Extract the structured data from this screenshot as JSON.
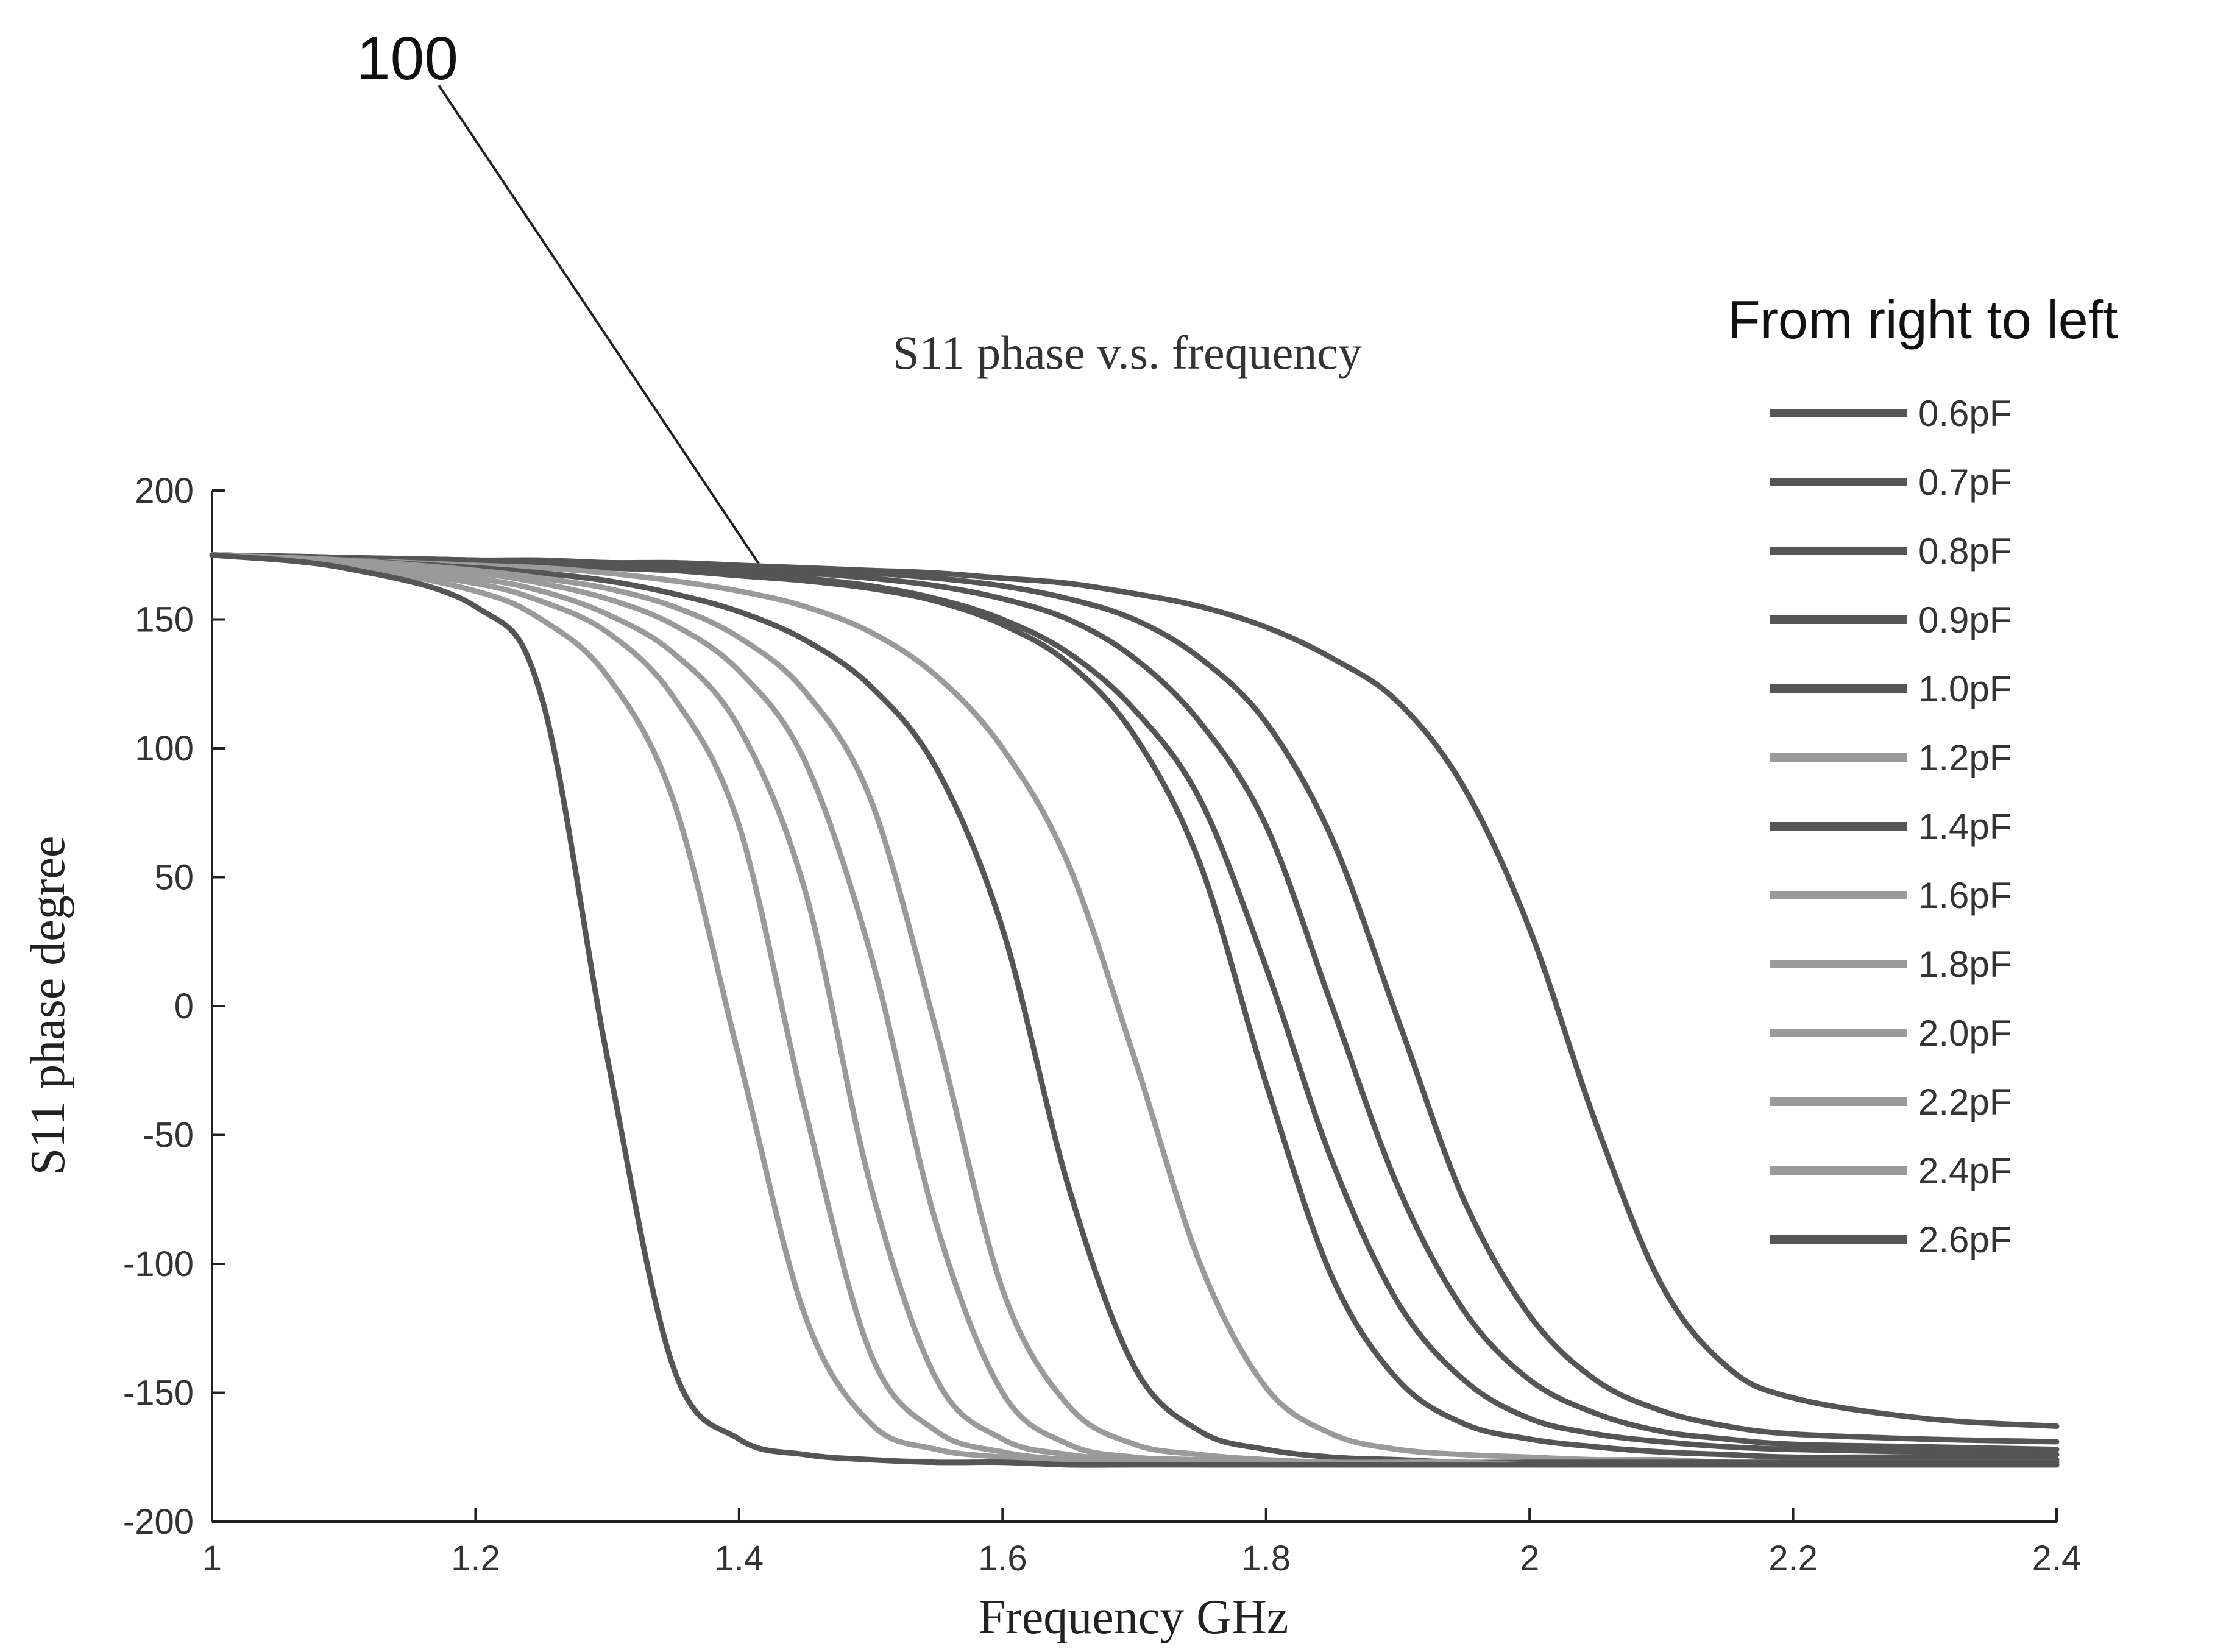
{
  "reference_numeral": "100",
  "legend": {
    "heading": "From right to left"
  },
  "colors": {
    "curve_dark": "#555555",
    "curve_light": "#9a9a9a",
    "axis": "#222222",
    "text": "#333333"
  },
  "chart_data": {
    "type": "line",
    "title": "S11 phase v.s. frequency",
    "xlabel": "Frequency GHz",
    "ylabel": "S11 phase degree",
    "xlim": [
      1,
      2.4
    ],
    "ylim": [
      -200,
      200
    ],
    "x_ticks": [
      1,
      1.2,
      1.4,
      1.6,
      1.8,
      2,
      2.2,
      2.4
    ],
    "x_tick_labels": [
      "1",
      "1.2",
      "1.4",
      "1.6",
      "1.8",
      "2",
      "2.2",
      "2.4"
    ],
    "y_ticks": [
      200,
      150,
      100,
      50,
      0,
      -50,
      -100,
      -150,
      -200
    ],
    "y_tick_labels": [
      "200",
      "150",
      "100",
      "50",
      "0",
      "-50",
      "-100",
      "-150",
      "-200"
    ],
    "grid": false,
    "legend_position": "right",
    "x": [
      1.0,
      1.1,
      1.2,
      1.25,
      1.3,
      1.35,
      1.4,
      1.45,
      1.5,
      1.55,
      1.6,
      1.65,
      1.7,
      1.75,
      1.8,
      1.85,
      1.9,
      1.95,
      2.0,
      2.05,
      2.1,
      2.15,
      2.2,
      2.3,
      2.4
    ],
    "series": [
      {
        "name": "0.6pF",
        "style": "dark",
        "values": [
          175,
          174,
          173,
          173,
          172,
          172,
          171,
          170,
          169,
          168,
          166,
          164,
          160,
          155,
          147,
          135,
          118,
          85,
          30,
          -45,
          -108,
          -140,
          -152,
          -160,
          -163
        ]
      },
      {
        "name": "0.7pF",
        "style": "dark",
        "values": [
          175,
          174,
          173,
          172,
          172,
          171,
          170,
          169,
          168,
          166,
          163,
          158,
          150,
          135,
          110,
          65,
          -5,
          -75,
          -120,
          -145,
          -157,
          -163,
          -166,
          -168,
          -169
        ]
      },
      {
        "name": "0.8pF",
        "style": "dark",
        "values": [
          175,
          174,
          173,
          172,
          171,
          170,
          169,
          168,
          166,
          163,
          158,
          150,
          135,
          110,
          70,
          0,
          -70,
          -118,
          -145,
          -158,
          -165,
          -168,
          -170,
          -171,
          -172
        ]
      },
      {
        "name": "0.9pF",
        "style": "dark",
        "values": [
          175,
          174,
          172,
          171,
          170,
          169,
          168,
          166,
          163,
          158,
          150,
          137,
          115,
          80,
          15,
          -60,
          -115,
          -145,
          -160,
          -166,
          -169,
          -171,
          -172,
          -173,
          -174
        ]
      },
      {
        "name": "1.0pF",
        "style": "dark",
        "values": [
          175,
          174,
          172,
          171,
          170,
          169,
          167,
          165,
          162,
          157,
          148,
          133,
          105,
          55,
          -30,
          -105,
          -145,
          -162,
          -168,
          -171,
          -173,
          -174,
          -175,
          -175,
          -176
        ]
      },
      {
        "name": "1.2pF",
        "style": "light",
        "values": [
          175,
          173,
          171,
          170,
          168,
          165,
          161,
          155,
          145,
          128,
          100,
          55,
          -20,
          -100,
          -148,
          -166,
          -172,
          -174,
          -175,
          -176,
          -176,
          -177,
          -177,
          -177,
          -177
        ]
      },
      {
        "name": "1.4pF",
        "style": "dark",
        "values": [
          175,
          173,
          170,
          168,
          165,
          160,
          153,
          142,
          124,
          92,
          30,
          -70,
          -140,
          -165,
          -172,
          -175,
          -176,
          -177,
          -177,
          -177,
          -177,
          -177,
          -177,
          -177,
          -177
        ]
      },
      {
        "name": "1.6pF",
        "style": "light",
        "values": [
          175,
          173,
          169,
          166,
          162,
          155,
          143,
          122,
          80,
          -10,
          -110,
          -155,
          -170,
          -174,
          -176,
          -177,
          -177,
          -177,
          -178,
          -178,
          -178,
          -178,
          -178,
          -178,
          -178
        ]
      },
      {
        "name": "1.8pF",
        "style": "light",
        "values": [
          175,
          172,
          168,
          164,
          158,
          148,
          130,
          95,
          20,
          -85,
          -150,
          -170,
          -175,
          -176,
          -177,
          -177,
          -178,
          -178,
          -178,
          -178,
          -178,
          -178,
          -178,
          -178,
          -178
        ]
      },
      {
        "name": "2.0pF",
        "style": "light",
        "values": [
          175,
          172,
          166,
          161,
          152,
          137,
          108,
          45,
          -70,
          -145,
          -168,
          -174,
          -176,
          -177,
          -177,
          -178,
          -178,
          -178,
          -178,
          -178,
          -178,
          -178,
          -178,
          -178,
          -178
        ]
      },
      {
        "name": "2.2pF",
        "style": "light",
        "values": [
          175,
          171,
          164,
          157,
          145,
          120,
          70,
          -40,
          -135,
          -165,
          -173,
          -176,
          -177,
          -177,
          -178,
          -178,
          -178,
          -178,
          -178,
          -178,
          -178,
          -178,
          -178,
          -178,
          -178
        ]
      },
      {
        "name": "2.4pF",
        "style": "light",
        "values": [
          175,
          171,
          161,
          150,
          128,
          80,
          -20,
          -120,
          -162,
          -172,
          -175,
          -177,
          -177,
          -178,
          -178,
          -178,
          -178,
          -178,
          -178,
          -178,
          -178,
          -178,
          -178,
          -178,
          -178
        ]
      },
      {
        "name": "2.6pF",
        "style": "dark",
        "values": [
          175,
          170,
          155,
          120,
          -20,
          -140,
          -168,
          -174,
          -176,
          -177,
          -177,
          -178,
          -178,
          -178,
          -178,
          -178,
          -178,
          -178,
          -178,
          -178,
          -178,
          -178,
          -178,
          -178,
          -178
        ]
      }
    ]
  }
}
